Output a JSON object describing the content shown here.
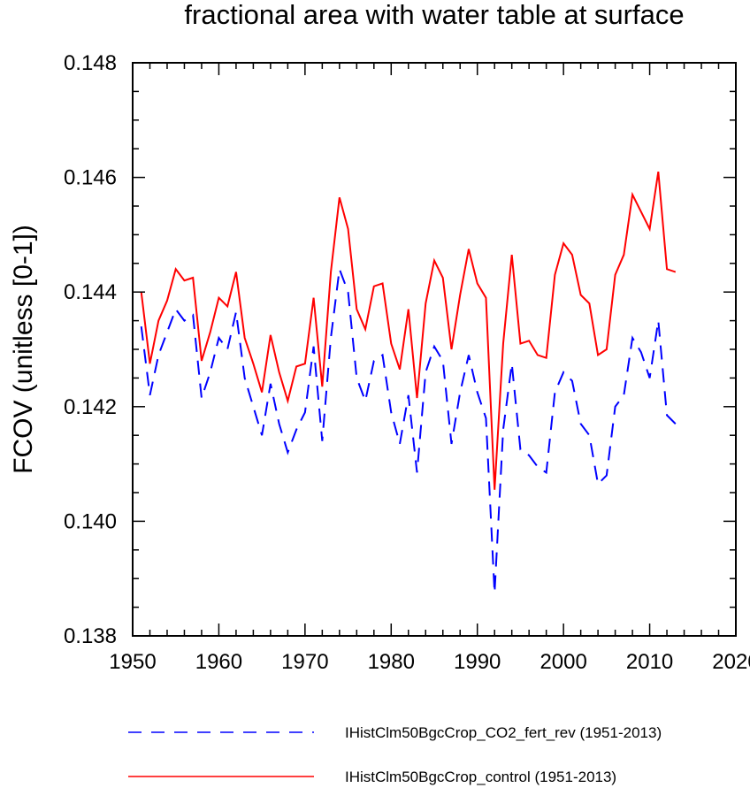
{
  "chart_data": {
    "type": "line",
    "title": "fractional area with water table at surface",
    "xlabel": "",
    "ylabel": "FCOV  (unitless [0-1])",
    "xlim": [
      1950,
      2020
    ],
    "ylim": [
      0.138,
      0.148
    ],
    "xticks": [
      1950,
      1960,
      1970,
      1980,
      1990,
      2000,
      2010,
      2020
    ],
    "xtick_labels": [
      "1950",
      "1960",
      "1970",
      "1980",
      "1990",
      "2000",
      "2010",
      "2020"
    ],
    "yticks": [
      0.138,
      0.14,
      0.142,
      0.144,
      0.146,
      0.148
    ],
    "ytick_labels": [
      "0.138",
      "0.140",
      "0.142",
      "0.144",
      "0.146",
      "0.148"
    ],
    "grid": false,
    "legend_position": "bottom",
    "x": [
      1951,
      1952,
      1953,
      1954,
      1955,
      1956,
      1957,
      1958,
      1959,
      1960,
      1961,
      1962,
      1963,
      1964,
      1965,
      1966,
      1967,
      1968,
      1969,
      1970,
      1971,
      1972,
      1973,
      1974,
      1975,
      1976,
      1977,
      1978,
      1979,
      1980,
      1981,
      1982,
      1983,
      1984,
      1985,
      1986,
      1987,
      1988,
      1989,
      1990,
      1991,
      1992,
      1993,
      1994,
      1995,
      1996,
      1997,
      1998,
      1999,
      2000,
      2001,
      2002,
      2003,
      2004,
      2005,
      2006,
      2007,
      2008,
      2009,
      2010,
      2011,
      2012,
      2013
    ],
    "series": [
      {
        "name": "IHistClm50BgcCrop_CO2_fert_rev (1951-2013)",
        "color": "#0000ff",
        "dash": "dashed",
        "values": [
          0.1434,
          0.1422,
          0.1429,
          0.1433,
          0.1437,
          0.1435,
          0.1436,
          0.14215,
          0.1426,
          0.1432,
          0.143,
          0.14365,
          0.1425,
          0.142,
          0.1415,
          0.1424,
          0.1417,
          0.1412,
          0.1416,
          0.1419,
          0.14305,
          0.1414,
          0.1432,
          0.1444,
          0.144,
          0.1425,
          0.1421,
          0.1428,
          0.1429,
          0.1419,
          0.14135,
          0.1422,
          0.14085,
          0.1426,
          0.14305,
          0.1428,
          0.14135,
          0.14225,
          0.1429,
          0.14225,
          0.1418,
          0.13875,
          0.1416,
          0.14275,
          0.14125,
          0.14115,
          0.14095,
          0.14085,
          0.14225,
          0.1426,
          0.14245,
          0.1417,
          0.1415,
          0.14065,
          0.1408,
          0.142,
          0.1422,
          0.1432,
          0.14295,
          0.1425,
          0.1435,
          0.14185,
          0.1417
        ]
      },
      {
        "name": "IHistClm50BgcCrop_control (1951-2013)",
        "color": "#ff0000",
        "dash": "solid",
        "values": [
          0.144,
          0.14275,
          0.1435,
          0.14385,
          0.1444,
          0.1442,
          0.14425,
          0.1428,
          0.1433,
          0.1439,
          0.14375,
          0.14435,
          0.1432,
          0.14275,
          0.14225,
          0.14325,
          0.1426,
          0.1421,
          0.1427,
          0.14275,
          0.1439,
          0.14235,
          0.14435,
          0.14565,
          0.1451,
          0.1437,
          0.14335,
          0.1441,
          0.14415,
          0.1431,
          0.14265,
          0.1437,
          0.14215,
          0.1438,
          0.14455,
          0.14425,
          0.143,
          0.14395,
          0.14475,
          0.14415,
          0.1439,
          0.14055,
          0.1431,
          0.14465,
          0.1431,
          0.14315,
          0.1429,
          0.14285,
          0.1443,
          0.14485,
          0.14465,
          0.14395,
          0.1438,
          0.1429,
          0.143,
          0.1443,
          0.14465,
          0.1457,
          0.1454,
          0.1451,
          0.1461,
          0.1444,
          0.14435
        ]
      }
    ]
  }
}
